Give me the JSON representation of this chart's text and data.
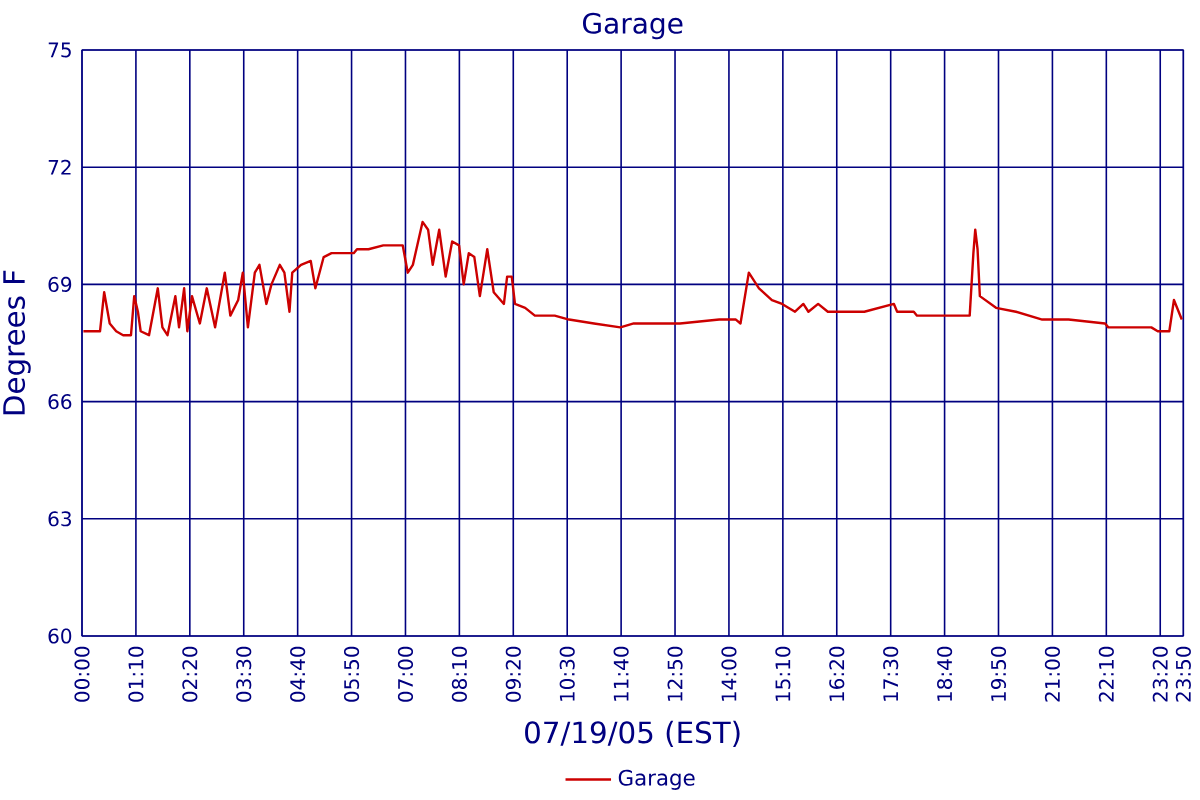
{
  "chart_data": {
    "type": "line",
    "title": "Garage",
    "xlabel": "07/19/05 (EST)",
    "ylabel": "Degrees F",
    "x": [
      0.03,
      0.39,
      0.48,
      0.6,
      0.74,
      0.89,
      1.06,
      1.13,
      1.21,
      1.27,
      1.45,
      1.64,
      1.74,
      1.85,
      2.02,
      2.1,
      2.21,
      2.28,
      2.38,
      2.55,
      2.7,
      2.88,
      3.09,
      3.21,
      3.38,
      3.48,
      3.59,
      3.74,
      3.84,
      3.99,
      4.1,
      4.28,
      4.38,
      4.49,
      4.55,
      4.74,
      4.95,
      5.05,
      5.23,
      5.4,
      5.88,
      5.95,
      6.2,
      6.52,
      6.94,
      7.05,
      7.16,
      7.37,
      7.49,
      7.59,
      7.73,
      7.87,
      8.01,
      8.16,
      8.26,
      8.37,
      8.49,
      8.61,
      8.77,
      8.91,
      9.13,
      9.2,
      9.3,
      9.37,
      9.59,
      9.8,
      10.09,
      10.23,
      10.54,
      11.08,
      11.65,
      11.94,
      12.94,
      13.79,
      14.15,
      14.25,
      14.43,
      14.65,
      14.93,
      15.15,
      15.43,
      15.61,
      15.72,
      15.93,
      16.14,
      16.93,
      17.57,
      17.64,
      18.0,
      18.07,
      19.21,
      19.29,
      19.33,
      19.38,
      19.43,
      19.78,
      20.21,
      20.78,
      21.35,
      22.14,
      22.21,
      23.14,
      23.28,
      23.53,
      23.63,
      23.8
    ],
    "series": [
      {
        "name": "Garage",
        "color": "#cc0000",
        "values": [
          67.8,
          67.8,
          68.8,
          68.0,
          67.8,
          67.7,
          67.7,
          68.7,
          68.3,
          67.8,
          67.7,
          68.9,
          67.9,
          67.7,
          68.7,
          67.9,
          68.9,
          67.8,
          68.7,
          68.0,
          68.9,
          67.9,
          69.3,
          68.2,
          68.6,
          69.3,
          67.9,
          69.3,
          69.5,
          68.5,
          69.0,
          69.5,
          69.3,
          68.3,
          69.3,
          69.5,
          69.6,
          68.9,
          69.7,
          69.8,
          69.8,
          69.9,
          69.9,
          70.0,
          70.0,
          69.3,
          69.5,
          70.6,
          70.4,
          69.5,
          70.4,
          69.2,
          70.1,
          70.0,
          69.0,
          69.8,
          69.7,
          68.7,
          69.9,
          68.8,
          68.5,
          69.2,
          69.2,
          68.5,
          68.4,
          68.2,
          68.2,
          68.2,
          68.1,
          68.0,
          67.9,
          68.0,
          68.0,
          68.1,
          68.1,
          68.0,
          69.3,
          68.9,
          68.6,
          68.5,
          68.3,
          68.5,
          68.3,
          68.5,
          68.3,
          68.3,
          68.5,
          68.3,
          68.3,
          68.2,
          68.2,
          69.8,
          70.4,
          69.9,
          68.7,
          68.4,
          68.3,
          68.1,
          68.1,
          68.0,
          67.9,
          67.9,
          67.8,
          67.8,
          68.6,
          68.1
        ]
      }
    ],
    "xlim": [
      0,
      23.8333
    ],
    "ylim": [
      60,
      75
    ],
    "xticks": [
      {
        "value": 0,
        "label": "00:00"
      },
      {
        "value": 1.1667,
        "label": "01:10"
      },
      {
        "value": 2.3333,
        "label": "02:20"
      },
      {
        "value": 3.5,
        "label": "03:30"
      },
      {
        "value": 4.6667,
        "label": "04:40"
      },
      {
        "value": 5.8333,
        "label": "05:50"
      },
      {
        "value": 7,
        "label": "07:00"
      },
      {
        "value": 8.1667,
        "label": "08:10"
      },
      {
        "value": 9.3333,
        "label": "09:20"
      },
      {
        "value": 10.5,
        "label": "10:30"
      },
      {
        "value": 11.6667,
        "label": "11:40"
      },
      {
        "value": 12.8333,
        "label": "12:50"
      },
      {
        "value": 14,
        "label": "14:00"
      },
      {
        "value": 15.1667,
        "label": "15:10"
      },
      {
        "value": 16.3333,
        "label": "16:20"
      },
      {
        "value": 17.5,
        "label": "17:30"
      },
      {
        "value": 18.6667,
        "label": "18:40"
      },
      {
        "value": 19.8333,
        "label": "19:50"
      },
      {
        "value": 21,
        "label": "21:00"
      },
      {
        "value": 22.1667,
        "label": "22:10"
      },
      {
        "value": 23.3333,
        "label": "23:20"
      },
      {
        "value": 23.8333,
        "label": "23:50"
      }
    ],
    "yticks": [
      60,
      63,
      66,
      69,
      72,
      75
    ],
    "grid": true,
    "legend": "bottom",
    "marker": "none",
    "line_style": "solid"
  }
}
